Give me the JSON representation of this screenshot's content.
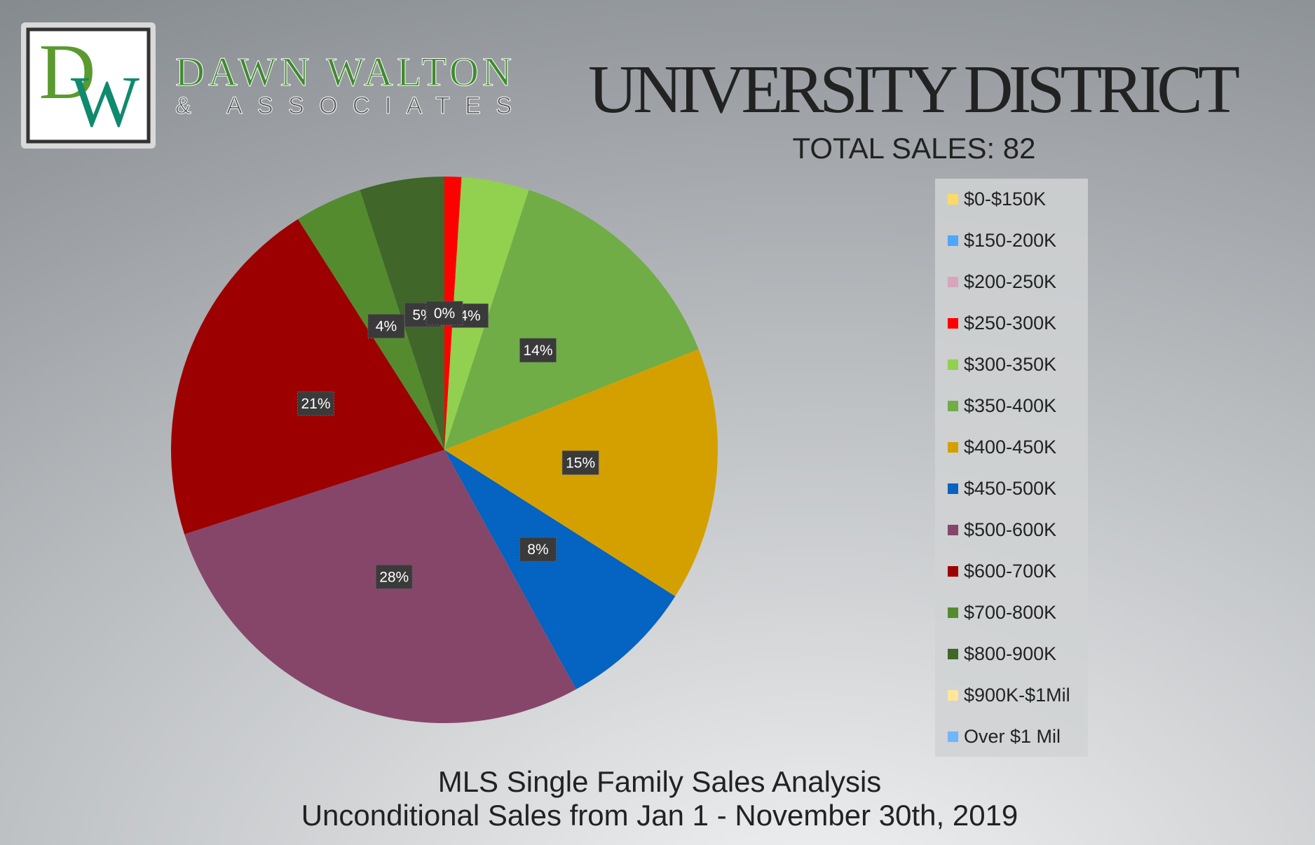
{
  "logo": {
    "monogram_d": "D",
    "monogram_w": "W",
    "name": "DAWN WALTON",
    "tagline": "& ASSOCIATES"
  },
  "chart_data": {
    "type": "pie",
    "title": "UNIVERSITY DISTRICT",
    "subtitle": "TOTAL SALES: 82",
    "footer": [
      "MLS Single Family Sales Analysis",
      "Unconditional Sales from Jan 1 - November 30th, 2019"
    ],
    "categories": [
      "$0-$150K",
      "$150-200K",
      "$200-250K",
      "$250-300K",
      "$300-350K",
      "$350-400K",
      "$400-450K",
      "$450-500K",
      "$500-600K",
      "$600-700K",
      "$700-800K",
      "$800-900K",
      "$900K-$1Mil",
      "Over $1 Mil"
    ],
    "values": [
      0,
      0,
      0,
      1,
      4,
      14,
      15,
      8,
      28,
      21,
      4,
      5,
      0,
      0
    ],
    "value_labels": [
      null,
      null,
      null,
      null,
      "4%",
      "14%",
      "15%",
      "8%",
      "28%",
      "21%",
      "4%",
      "5%",
      "0%",
      null
    ],
    "colors": [
      "#ffd966",
      "#4da6ff",
      "#d5a6bd",
      "#ff0000",
      "#92d050",
      "#70ad47",
      "#d4a000",
      "#0563c1",
      "#86466a",
      "#9c0000",
      "#558b2f",
      "#40662a",
      "#ffe699",
      "#6fb6ff"
    ],
    "legend": "right"
  }
}
